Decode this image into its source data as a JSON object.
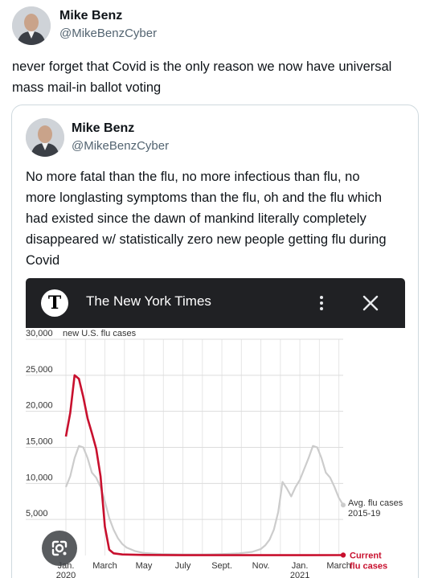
{
  "post": {
    "author_name": "Mike Benz",
    "author_handle": "@MikeBenzCyber",
    "text_lines": [
      "never forget that Covid is the only reason we now have universal",
      "mass mail-in ballot voting"
    ]
  },
  "quoted_post": {
    "author_name": "Mike Benz",
    "author_handle": "@MikeBenzCyber",
    "text_lines": [
      "No more fatal than the flu, no more infectious than flu, no",
      "more longlasting symptoms than the flu, oh and the flu which",
      "had existed since the dawn of mankind literally completely",
      "disappeared w/ statistically zero new people getting flu during",
      "Covid"
    ]
  },
  "embed": {
    "logo_letter": "T",
    "title": "The New York Times",
    "menu_icon": "more-vertical-icon",
    "close_icon": "close-icon"
  },
  "colors": {
    "current": "#c8102e",
    "average": "#cccccc",
    "nyt_bar": "#202124"
  },
  "chart_data": {
    "type": "line",
    "ylabel": "new U.S. flu cases",
    "ylim": [
      0,
      30000
    ],
    "y_ticks": [
      {
        "value": 30000,
        "label": "30,000"
      },
      {
        "value": 25000,
        "label": "25,000"
      },
      {
        "value": 20000,
        "label": "20,000"
      },
      {
        "value": 15000,
        "label": "15,000"
      },
      {
        "value": 10000,
        "label": "10,000"
      },
      {
        "value": 5000,
        "label": "5,000"
      }
    ],
    "x_ticks": [
      {
        "week": 0,
        "label": "Jan.",
        "sublabel": "2020"
      },
      {
        "week": 9,
        "label": "March",
        "sublabel": ""
      },
      {
        "week": 18,
        "label": "May",
        "sublabel": ""
      },
      {
        "week": 27,
        "label": "July",
        "sublabel": ""
      },
      {
        "week": 36,
        "label": "Sept.",
        "sublabel": ""
      },
      {
        "week": 45,
        "label": "Nov.",
        "sublabel": ""
      },
      {
        "week": 54,
        "label": "Jan.",
        "sublabel": "2021"
      },
      {
        "week": 63,
        "label": "March",
        "sublabel": ""
      }
    ],
    "series": [
      {
        "name": "Avg. flu cases 2015-19",
        "label_lines": [
          "Avg. flu cases",
          "2015-19"
        ],
        "points": [
          [
            0,
            9500
          ],
          [
            1,
            11000
          ],
          [
            2,
            13500
          ],
          [
            3,
            15200
          ],
          [
            4,
            15000
          ],
          [
            5,
            13500
          ],
          [
            6,
            11500
          ],
          [
            7,
            10800
          ],
          [
            8,
            9500
          ],
          [
            9,
            7500
          ],
          [
            10,
            5200
          ],
          [
            11,
            3600
          ],
          [
            12,
            2400
          ],
          [
            13,
            1600
          ],
          [
            14,
            1100
          ],
          [
            16,
            600
          ],
          [
            18,
            350
          ],
          [
            22,
            200
          ],
          [
            27,
            150
          ],
          [
            32,
            150
          ],
          [
            36,
            200
          ],
          [
            40,
            300
          ],
          [
            43,
            500
          ],
          [
            45,
            900
          ],
          [
            46,
            1400
          ],
          [
            47,
            2200
          ],
          [
            48,
            3600
          ],
          [
            49,
            6000
          ],
          [
            50,
            10200
          ],
          [
            51,
            9300
          ],
          [
            52,
            8200
          ],
          [
            53,
            9500
          ],
          [
            54,
            10500
          ],
          [
            55,
            12000
          ],
          [
            56,
            13500
          ],
          [
            57,
            15200
          ],
          [
            58,
            15000
          ],
          [
            59,
            13500
          ],
          [
            60,
            11500
          ],
          [
            61,
            10800
          ],
          [
            62,
            9500
          ],
          [
            63,
            8000
          ],
          [
            64,
            7000
          ]
        ]
      },
      {
        "name": "Current flu cases",
        "label_lines": [
          "Current",
          "flu cases"
        ],
        "points": [
          [
            0,
            16500
          ],
          [
            1,
            19800
          ],
          [
            2,
            25000
          ],
          [
            3,
            24500
          ],
          [
            4,
            22000
          ],
          [
            5,
            19000
          ],
          [
            6,
            17000
          ],
          [
            7,
            14800
          ],
          [
            8,
            11000
          ],
          [
            9,
            4000
          ],
          [
            10,
            800
          ],
          [
            11,
            300
          ],
          [
            13,
            150
          ],
          [
            18,
            80
          ],
          [
            27,
            50
          ],
          [
            36,
            50
          ],
          [
            45,
            50
          ],
          [
            54,
            50
          ],
          [
            64,
            60
          ]
        ]
      }
    ]
  }
}
